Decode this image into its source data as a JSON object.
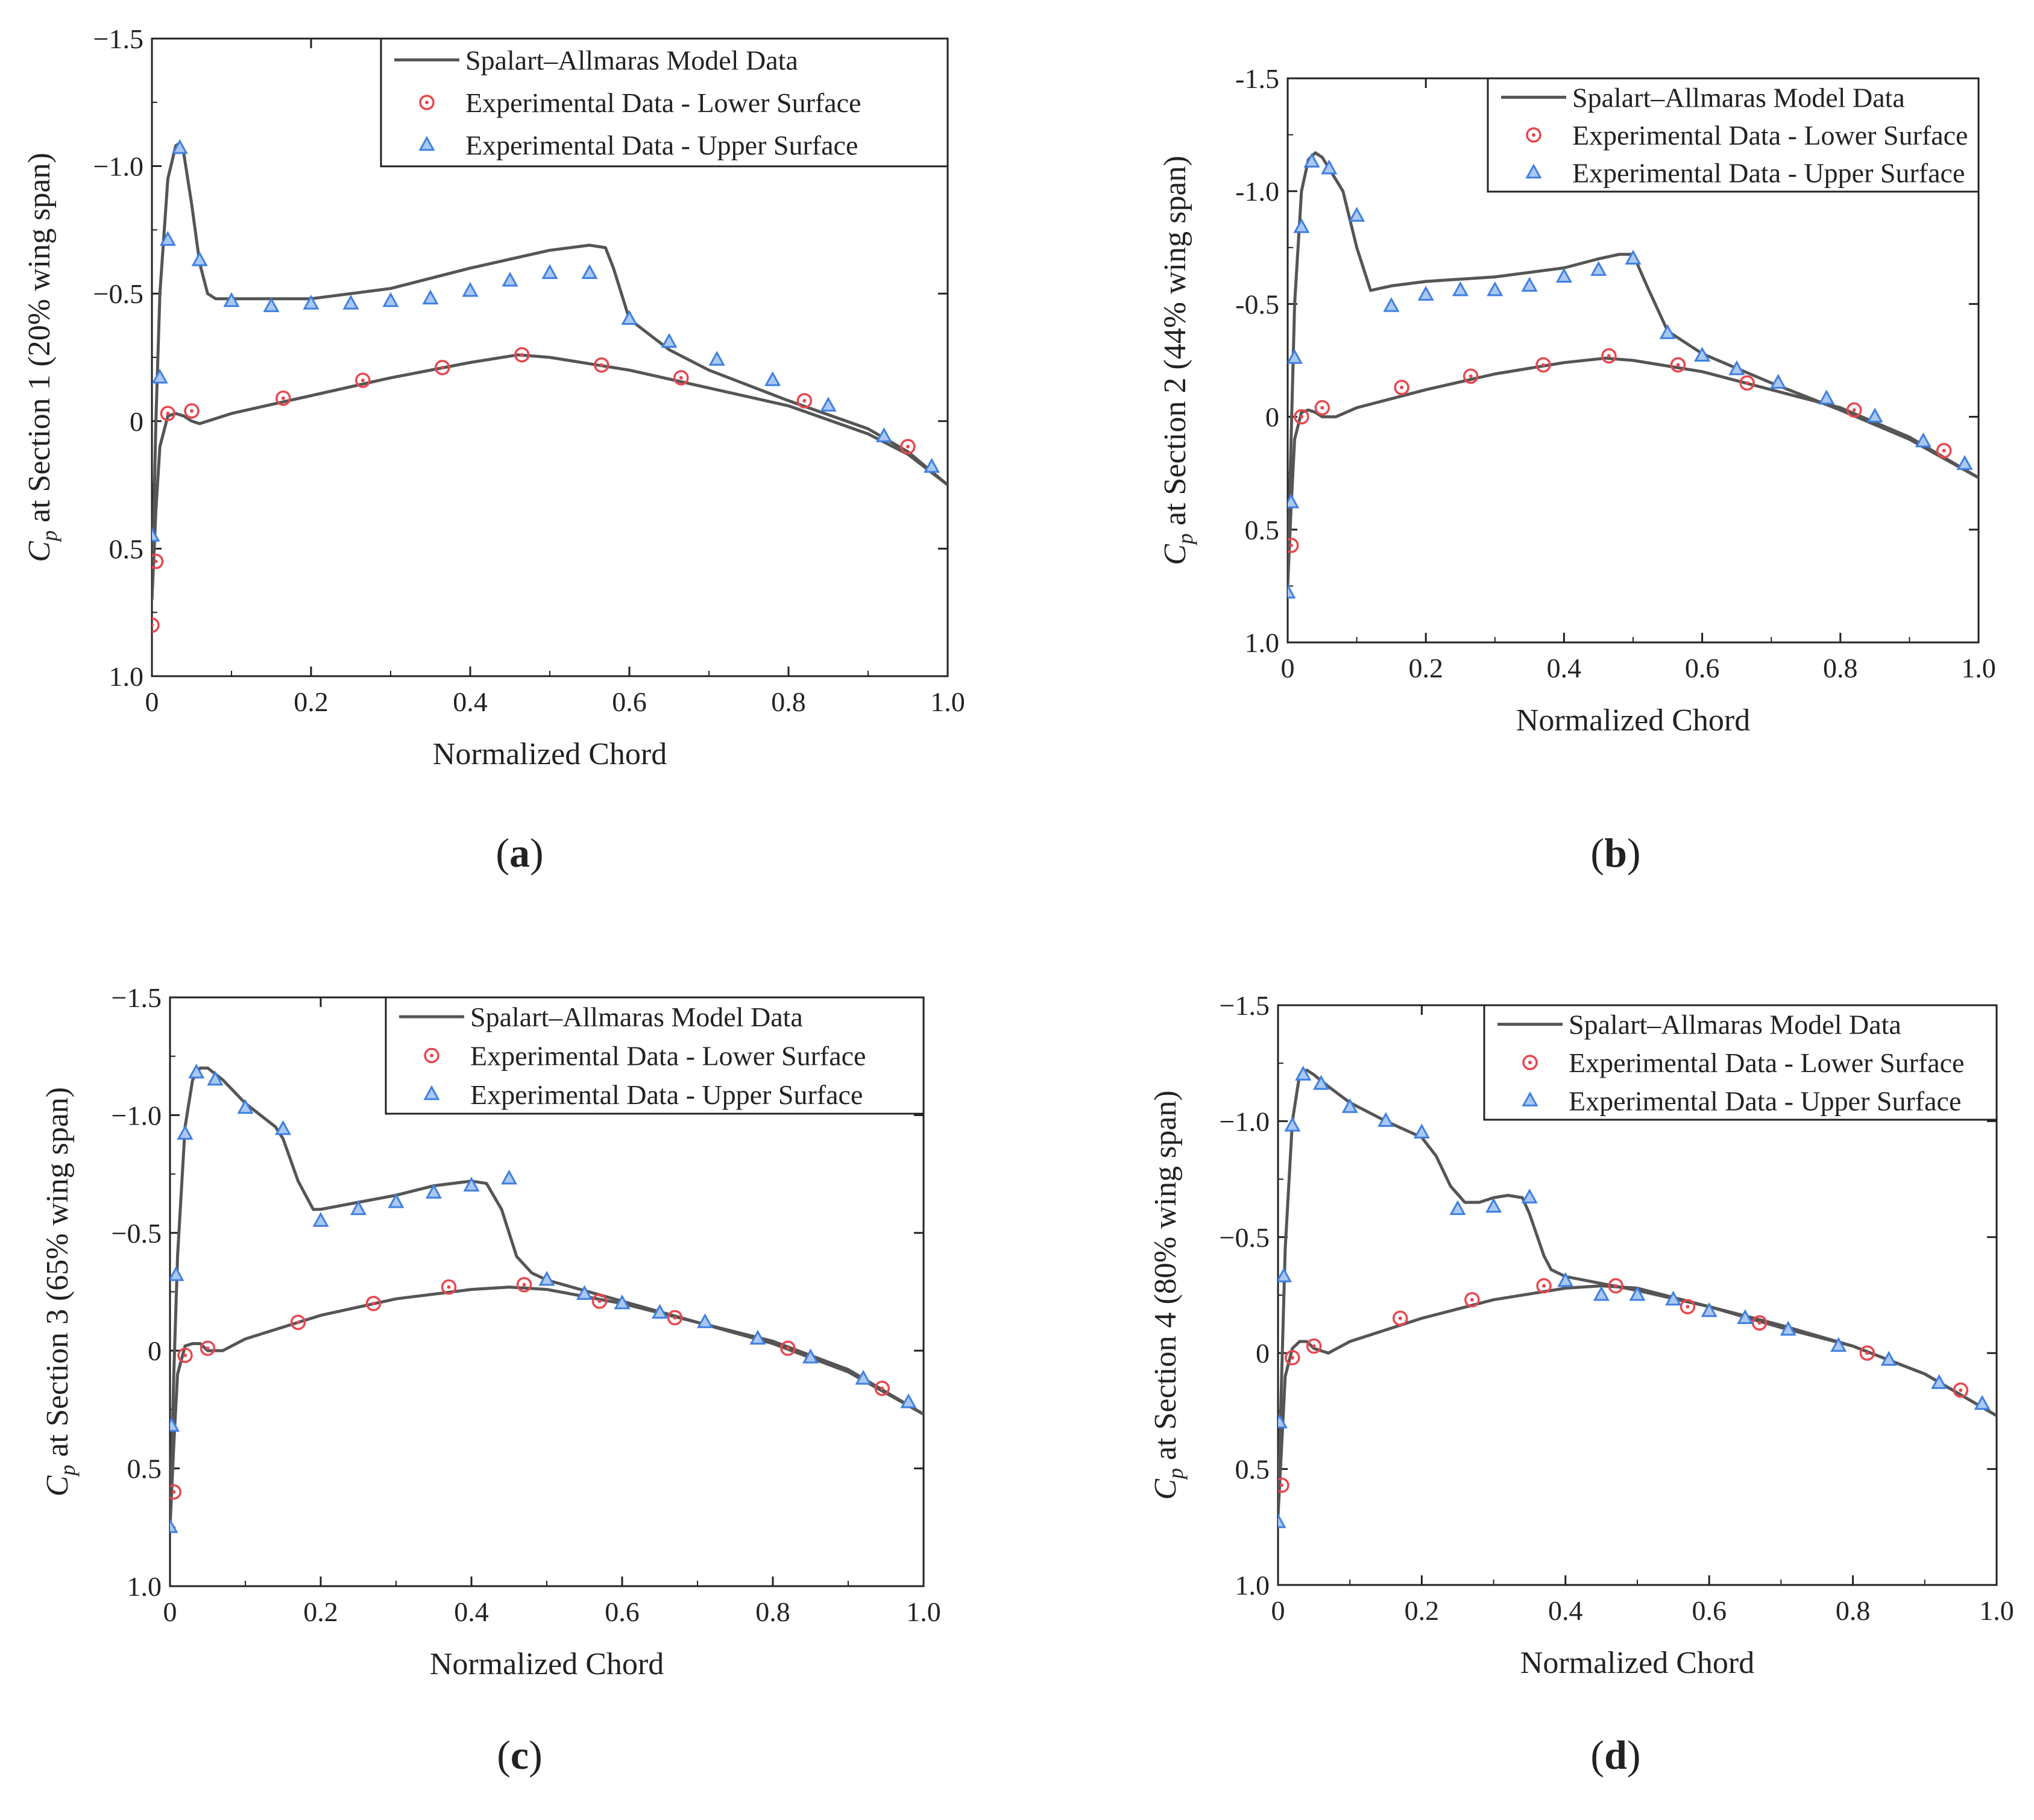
{
  "figure": {
    "panels": [
      "(a)",
      "(b)",
      "(c)",
      "(d)"
    ],
    "legend": {
      "model": "Spalart–Allmaras Model Data",
      "lower": "Experimental Data - Lower Surface",
      "upper": "Experimental Data - Upper Surface"
    },
    "colors": {
      "line": "#555555",
      "lower_marker": "#e8474e",
      "upper_marker": "#3f7fe0",
      "axis": "#222222"
    }
  },
  "chart_data": [
    {
      "type": "line",
      "panel_label": "(a)",
      "xlabel": "Normalized Chord",
      "ylabel_symbol": "C",
      "ylabel_sub": "p",
      "ylabel_rest": " at Section 1 (20% wing span)",
      "xlim": [
        0,
        1.0
      ],
      "ylim": [
        1.0,
        -1.5
      ],
      "x_ticks": [
        "0",
        "0.2",
        "0.4",
        "0.6",
        "0.8",
        "1.0"
      ],
      "x_tick_values": [
        0,
        0.2,
        0.4,
        0.6,
        0.8,
        1.0
      ],
      "y_ticks": [
        "−1.5",
        "−1.0",
        "−0.5",
        "0",
        "0.5",
        "1.0"
      ],
      "y_tick_values": [
        -1.5,
        -1.0,
        -0.5,
        0,
        0.5,
        1.0
      ],
      "legend_position": "top-right",
      "series": [
        {
          "name": "Spalart–Allmaras Model Data (upper)",
          "kind": "line",
          "x": [
            0,
            0.005,
            0.01,
            0.02,
            0.03,
            0.035,
            0.04,
            0.05,
            0.06,
            0.07,
            0.08,
            0.1,
            0.2,
            0.3,
            0.4,
            0.5,
            0.55,
            0.57,
            0.58,
            0.6,
            0.65,
            0.7,
            0.8,
            0.9,
            0.95,
            1.0
          ],
          "y": [
            0.7,
            0.0,
            -0.5,
            -0.95,
            -1.08,
            -1.09,
            -1.05,
            -0.85,
            -0.62,
            -0.5,
            -0.48,
            -0.48,
            -0.48,
            -0.52,
            -0.6,
            -0.67,
            -0.69,
            -0.68,
            -0.6,
            -0.4,
            -0.28,
            -0.2,
            -0.08,
            0.03,
            0.12,
            0.25
          ]
        },
        {
          "name": "Spalart–Allmaras Model Data (lower)",
          "kind": "line",
          "x": [
            0,
            0.005,
            0.01,
            0.02,
            0.03,
            0.04,
            0.05,
            0.06,
            0.1,
            0.2,
            0.3,
            0.4,
            0.46,
            0.5,
            0.6,
            0.7,
            0.8,
            0.9,
            0.95,
            1.0
          ],
          "y": [
            0.7,
            0.35,
            0.1,
            -0.02,
            -0.03,
            -0.02,
            0.0,
            0.01,
            -0.03,
            -0.1,
            -0.17,
            -0.23,
            -0.26,
            -0.25,
            -0.2,
            -0.13,
            -0.06,
            0.05,
            0.13,
            0.25
          ]
        },
        {
          "name": "Experimental Data - Lower Surface",
          "kind": "circle",
          "x": [
            0,
            0.005,
            0.02,
            0.05,
            0.165,
            0.265,
            0.365,
            0.465,
            0.565,
            0.665,
            0.82,
            0.95
          ],
          "y": [
            0.8,
            0.55,
            -0.03,
            -0.04,
            -0.09,
            -0.16,
            -0.21,
            -0.26,
            -0.22,
            -0.17,
            -0.08,
            0.1
          ]
        },
        {
          "name": "Experimental Data - Upper Surface",
          "kind": "triangle",
          "x": [
            0,
            0.01,
            0.02,
            0.035,
            0.06,
            0.1,
            0.15,
            0.2,
            0.25,
            0.3,
            0.35,
            0.4,
            0.45,
            0.5,
            0.55,
            0.6,
            0.65,
            0.71,
            0.78,
            0.85,
            0.92,
            0.98
          ],
          "y": [
            0.45,
            -0.17,
            -0.71,
            -1.07,
            -0.63,
            -0.47,
            -0.45,
            -0.46,
            -0.46,
            -0.47,
            -0.48,
            -0.51,
            -0.55,
            -0.58,
            -0.58,
            -0.4,
            -0.31,
            -0.24,
            -0.16,
            -0.06,
            0.06,
            0.18
          ]
        }
      ]
    },
    {
      "type": "line",
      "panel_label": "(b)",
      "xlabel": "Normalized Chord",
      "ylabel_symbol": "C",
      "ylabel_sub": "p",
      "ylabel_rest": " at Section 2 (44% wing span)",
      "xlim": [
        0,
        1.0
      ],
      "ylim": [
        1.0,
        -1.5
      ],
      "x_ticks": [
        "0",
        "0.2",
        "0.4",
        "0.6",
        "0.8",
        "1.0"
      ],
      "x_tick_values": [
        0,
        0.2,
        0.4,
        0.6,
        0.8,
        1.0
      ],
      "y_ticks": [
        "-1.5",
        "-1.0",
        "-0.5",
        "0",
        "0.5",
        "1.0"
      ],
      "y_tick_values": [
        -1.5,
        -1.0,
        -0.5,
        0,
        0.5,
        1.0
      ],
      "legend_position": "top-right",
      "series": [
        {
          "name": "Spalart–Allmaras Model Data (upper)",
          "kind": "line",
          "x": [
            0,
            0.005,
            0.01,
            0.02,
            0.03,
            0.04,
            0.05,
            0.06,
            0.08,
            0.1,
            0.12,
            0.15,
            0.2,
            0.3,
            0.4,
            0.45,
            0.48,
            0.5,
            0.52,
            0.55,
            0.6,
            0.7,
            0.8,
            0.9,
            1.0
          ],
          "y": [
            0.75,
            0.1,
            -0.5,
            -1.0,
            -1.14,
            -1.17,
            -1.15,
            -1.1,
            -1.0,
            -0.75,
            -0.56,
            -0.58,
            -0.6,
            -0.62,
            -0.66,
            -0.7,
            -0.72,
            -0.72,
            -0.58,
            -0.38,
            -0.28,
            -0.15,
            -0.03,
            0.1,
            0.27
          ]
        },
        {
          "name": "Spalart–Allmaras Model Data (lower)",
          "kind": "line",
          "x": [
            0,
            0.005,
            0.01,
            0.02,
            0.03,
            0.04,
            0.05,
            0.07,
            0.1,
            0.2,
            0.3,
            0.4,
            0.46,
            0.5,
            0.6,
            0.7,
            0.8,
            0.9,
            1.0
          ],
          "y": [
            0.75,
            0.4,
            0.1,
            -0.02,
            -0.03,
            -0.02,
            0.0,
            0.0,
            -0.04,
            -0.12,
            -0.19,
            -0.24,
            -0.26,
            -0.25,
            -0.2,
            -0.12,
            -0.04,
            0.09,
            0.27
          ]
        },
        {
          "name": "Experimental Data - Lower Surface",
          "kind": "circle",
          "x": [
            0.005,
            0.02,
            0.05,
            0.165,
            0.265,
            0.37,
            0.465,
            0.565,
            0.665,
            0.82,
            0.95
          ],
          "y": [
            0.57,
            0.0,
            -0.04,
            -0.13,
            -0.18,
            -0.23,
            -0.27,
            -0.23,
            -0.15,
            -0.03,
            0.15
          ]
        },
        {
          "name": "Experimental Data - Upper Surface",
          "kind": "triangle",
          "x": [
            0,
            0.005,
            0.01,
            0.02,
            0.035,
            0.06,
            0.1,
            0.15,
            0.2,
            0.25,
            0.3,
            0.35,
            0.4,
            0.45,
            0.5,
            0.55,
            0.6,
            0.65,
            0.71,
            0.78,
            0.85,
            0.92,
            0.98
          ],
          "y": [
            0.78,
            0.38,
            -0.26,
            -0.84,
            -1.13,
            -1.1,
            -0.89,
            -0.49,
            -0.54,
            -0.56,
            -0.56,
            -0.58,
            -0.62,
            -0.65,
            -0.7,
            -0.37,
            -0.27,
            -0.21,
            -0.15,
            -0.08,
            0.0,
            0.11,
            0.21
          ]
        }
      ]
    },
    {
      "type": "line",
      "panel_label": "(c)",
      "xlabel": "Normalized Chord",
      "ylabel_symbol": "C",
      "ylabel_sub": "p",
      "ylabel_rest": " at Section 3 (65% wing span)",
      "xlim": [
        0,
        1.0
      ],
      "ylim": [
        1.0,
        -1.5
      ],
      "x_ticks": [
        "0",
        "0.2",
        "0.4",
        "0.6",
        "0.8",
        "1.0"
      ],
      "x_tick_values": [
        0,
        0.2,
        0.4,
        0.6,
        0.8,
        1.0
      ],
      "y_ticks": [
        "−1.5",
        "−1.0",
        "−0.5",
        "0",
        "0.5",
        "1.0"
      ],
      "y_tick_values": [
        -1.5,
        -1.0,
        -0.5,
        0,
        0.5,
        1.0
      ],
      "legend_position": "top-right",
      "series": [
        {
          "name": "Spalart–Allmaras Model Data (upper)",
          "kind": "line",
          "x": [
            0,
            0.005,
            0.01,
            0.02,
            0.03,
            0.04,
            0.05,
            0.07,
            0.1,
            0.14,
            0.15,
            0.17,
            0.19,
            0.2,
            0.25,
            0.3,
            0.35,
            0.4,
            0.42,
            0.44,
            0.46,
            0.48,
            0.5,
            0.6,
            0.7,
            0.8,
            0.9,
            1.0
          ],
          "y": [
            0.75,
            0.1,
            -0.4,
            -0.95,
            -1.15,
            -1.2,
            -1.2,
            -1.15,
            -1.05,
            -0.95,
            -0.9,
            -0.72,
            -0.6,
            -0.6,
            -0.63,
            -0.66,
            -0.7,
            -0.72,
            -0.71,
            -0.6,
            -0.4,
            -0.33,
            -0.3,
            -0.21,
            -0.12,
            -0.04,
            0.08,
            0.27
          ]
        },
        {
          "name": "Spalart–Allmaras Model Data (lower)",
          "kind": "line",
          "x": [
            0,
            0.005,
            0.01,
            0.02,
            0.03,
            0.04,
            0.05,
            0.07,
            0.1,
            0.2,
            0.3,
            0.4,
            0.45,
            0.5,
            0.6,
            0.7,
            0.8,
            0.9,
            1.0
          ],
          "y": [
            0.75,
            0.4,
            0.1,
            -0.02,
            -0.03,
            -0.03,
            0.0,
            0.0,
            -0.05,
            -0.15,
            -0.22,
            -0.26,
            -0.27,
            -0.26,
            -0.2,
            -0.12,
            -0.03,
            0.09,
            0.27
          ]
        },
        {
          "name": "Experimental Data - Lower Surface",
          "kind": "circle",
          "x": [
            0.005,
            0.02,
            0.05,
            0.17,
            0.27,
            0.37,
            0.47,
            0.57,
            0.67,
            0.82,
            0.945
          ],
          "y": [
            0.6,
            0.02,
            -0.01,
            -0.12,
            -0.2,
            -0.27,
            -0.28,
            -0.21,
            -0.14,
            -0.01,
            0.16
          ]
        },
        {
          "name": "Experimental Data - Upper Surface",
          "kind": "triangle",
          "x": [
            0,
            0.002,
            0.008,
            0.02,
            0.035,
            0.06,
            0.1,
            0.15,
            0.2,
            0.25,
            0.3,
            0.35,
            0.4,
            0.45,
            0.5,
            0.55,
            0.6,
            0.65,
            0.71,
            0.78,
            0.85,
            0.92,
            0.98
          ],
          "y": [
            0.75,
            0.32,
            -0.32,
            -0.92,
            -1.18,
            -1.15,
            -1.03,
            -0.94,
            -0.55,
            -0.6,
            -0.63,
            -0.67,
            -0.7,
            -0.73,
            -0.3,
            -0.24,
            -0.2,
            -0.16,
            -0.12,
            -0.05,
            0.03,
            0.12,
            0.22
          ]
        }
      ]
    },
    {
      "type": "line",
      "panel_label": "(d)",
      "xlabel": "Normalized Chord",
      "ylabel_symbol": "C",
      "ylabel_sub": "p",
      "ylabel_rest": " at Section 4 (80% wing span)",
      "xlim": [
        0,
        1.0
      ],
      "ylim": [
        1.0,
        -1.5
      ],
      "x_ticks": [
        "0",
        "0.2",
        "0.4",
        "0.6",
        "0.8",
        "1.0"
      ],
      "x_tick_values": [
        0,
        0.2,
        0.4,
        0.6,
        0.8,
        1.0
      ],
      "y_ticks": [
        "−1.5",
        "−1.0",
        "−0.5",
        "0",
        "0.5",
        "1.0"
      ],
      "y_tick_values": [
        -1.5,
        -1.0,
        -0.5,
        0,
        0.5,
        1.0
      ],
      "legend_position": "top-right",
      "series": [
        {
          "name": "Spalart–Allmaras Model Data (upper)",
          "kind": "line",
          "x": [
            0,
            0.005,
            0.01,
            0.02,
            0.03,
            0.04,
            0.05,
            0.07,
            0.1,
            0.15,
            0.2,
            0.22,
            0.24,
            0.26,
            0.28,
            0.3,
            0.32,
            0.34,
            0.35,
            0.37,
            0.38,
            0.4,
            0.5,
            0.6,
            0.7,
            0.8,
            0.9,
            1.0
          ],
          "y": [
            0.7,
            0.1,
            -0.45,
            -1.0,
            -1.2,
            -1.22,
            -1.2,
            -1.15,
            -1.08,
            -1.0,
            -0.93,
            -0.85,
            -0.72,
            -0.65,
            -0.65,
            -0.67,
            -0.68,
            -0.67,
            -0.6,
            -0.42,
            -0.36,
            -0.33,
            -0.27,
            -0.2,
            -0.11,
            -0.03,
            0.09,
            0.27
          ]
        },
        {
          "name": "Spalart–Allmaras Model Data (lower)",
          "kind": "line",
          "x": [
            0,
            0.005,
            0.01,
            0.02,
            0.03,
            0.04,
            0.05,
            0.07,
            0.1,
            0.2,
            0.3,
            0.4,
            0.45,
            0.5,
            0.6,
            0.7,
            0.8,
            0.9,
            1.0
          ],
          "y": [
            0.7,
            0.4,
            0.1,
            -0.02,
            -0.05,
            -0.05,
            -0.02,
            0.0,
            -0.05,
            -0.15,
            -0.23,
            -0.28,
            -0.29,
            -0.28,
            -0.2,
            -0.12,
            -0.03,
            0.09,
            0.27
          ]
        },
        {
          "name": "Experimental Data - Lower Surface",
          "kind": "circle",
          "x": [
            0.005,
            0.02,
            0.05,
            0.17,
            0.27,
            0.37,
            0.47,
            0.57,
            0.67,
            0.82,
            0.95
          ],
          "y": [
            0.57,
            0.02,
            -0.03,
            -0.15,
            -0.23,
            -0.29,
            -0.29,
            -0.2,
            -0.13,
            0.0,
            0.16
          ]
        },
        {
          "name": "Experimental Data - Upper Surface",
          "kind": "triangle",
          "x": [
            0,
            0.002,
            0.008,
            0.02,
            0.035,
            0.06,
            0.1,
            0.15,
            0.2,
            0.25,
            0.3,
            0.35,
            0.4,
            0.45,
            0.5,
            0.55,
            0.6,
            0.65,
            0.71,
            0.78,
            0.85,
            0.92,
            0.98
          ],
          "y": [
            0.73,
            0.3,
            -0.33,
            -0.98,
            -1.2,
            -1.16,
            -1.06,
            -1.0,
            -0.95,
            -0.62,
            -0.63,
            -0.67,
            -0.31,
            -0.25,
            -0.25,
            -0.23,
            -0.18,
            -0.15,
            -0.1,
            -0.03,
            0.03,
            0.13,
            0.22
          ]
        }
      ]
    }
  ]
}
